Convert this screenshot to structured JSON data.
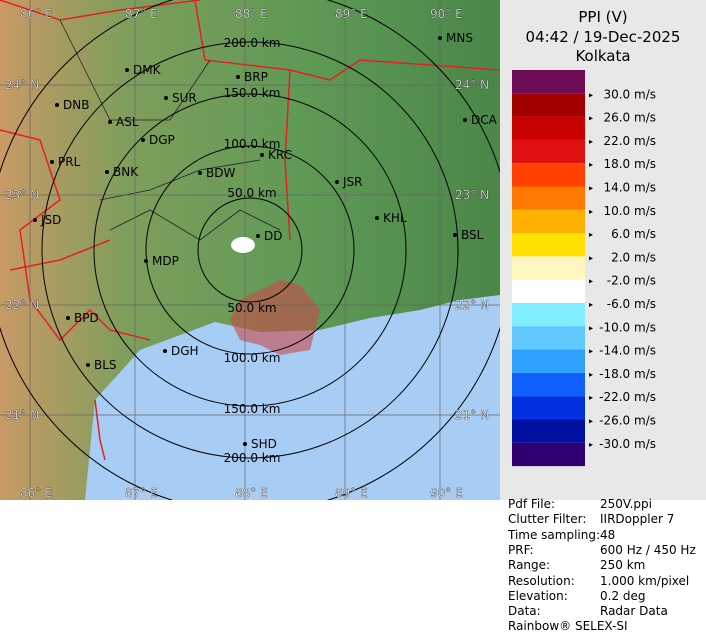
{
  "header": {
    "title": "PPI (V)",
    "time": "04:42 / 19-Dec-2025",
    "station": "Kolkata"
  },
  "legend": {
    "labels": [
      "30.0 m/s",
      "26.0 m/s",
      "22.0 m/s",
      "18.0 m/s",
      "14.0 m/s",
      "10.0 m/s",
      "6.0 m/s",
      "2.0 m/s",
      "-2.0 m/s",
      "-6.0 m/s",
      "-10.0 m/s",
      "-14.0 m/s",
      "-18.0 m/s",
      "-22.0 m/s",
      "-26.0 m/s",
      "-30.0 m/s"
    ],
    "colors": [
      "#6e0d55",
      "#a00000",
      "#c80000",
      "#e01010",
      "#ff4000",
      "#ff7800",
      "#ffb000",
      "#ffe000",
      "#fff6c0",
      "#ffffff",
      "#80eeff",
      "#60c8ff",
      "#30a0ff",
      "#1060ff",
      "#0030e0",
      "#0010a0",
      "#300070"
    ]
  },
  "map": {
    "longitudes": [
      "86° E",
      "87° E",
      "88° E",
      "89° E",
      "90° E"
    ],
    "latitudes": [
      "24° N",
      "23° N",
      "22° N",
      "21° N"
    ],
    "ranges": [
      "50.0 km",
      "100.0 km",
      "150.0 km",
      "200.0 km"
    ],
    "cities": [
      "MNS",
      "DMK",
      "BRP",
      "DNB",
      "SUR",
      "ASL",
      "DCA",
      "DGP",
      "PRL",
      "KRC",
      "BNK",
      "BDW",
      "JSR",
      "KHL",
      "JSD",
      "BSL",
      "DD",
      "MDP",
      "BPD",
      "DGH",
      "BLS",
      "SHD"
    ]
  },
  "info": {
    "rows": [
      [
        "Pdf File:",
        "250V.ppi"
      ],
      [
        "Clutter Filter:",
        "IIRDoppler 7"
      ],
      [
        "Time sampling:",
        "48"
      ],
      [
        "PRF:",
        "600 Hz / 450 Hz"
      ],
      [
        "Range:",
        "250 km"
      ],
      [
        "Resolution:",
        "1.000 km/pixel"
      ],
      [
        "Elevation:",
        "0.2 deg"
      ],
      [
        "Data:",
        "Radar Data"
      ]
    ],
    "footer": "Rainbow® SELEX-SI"
  }
}
